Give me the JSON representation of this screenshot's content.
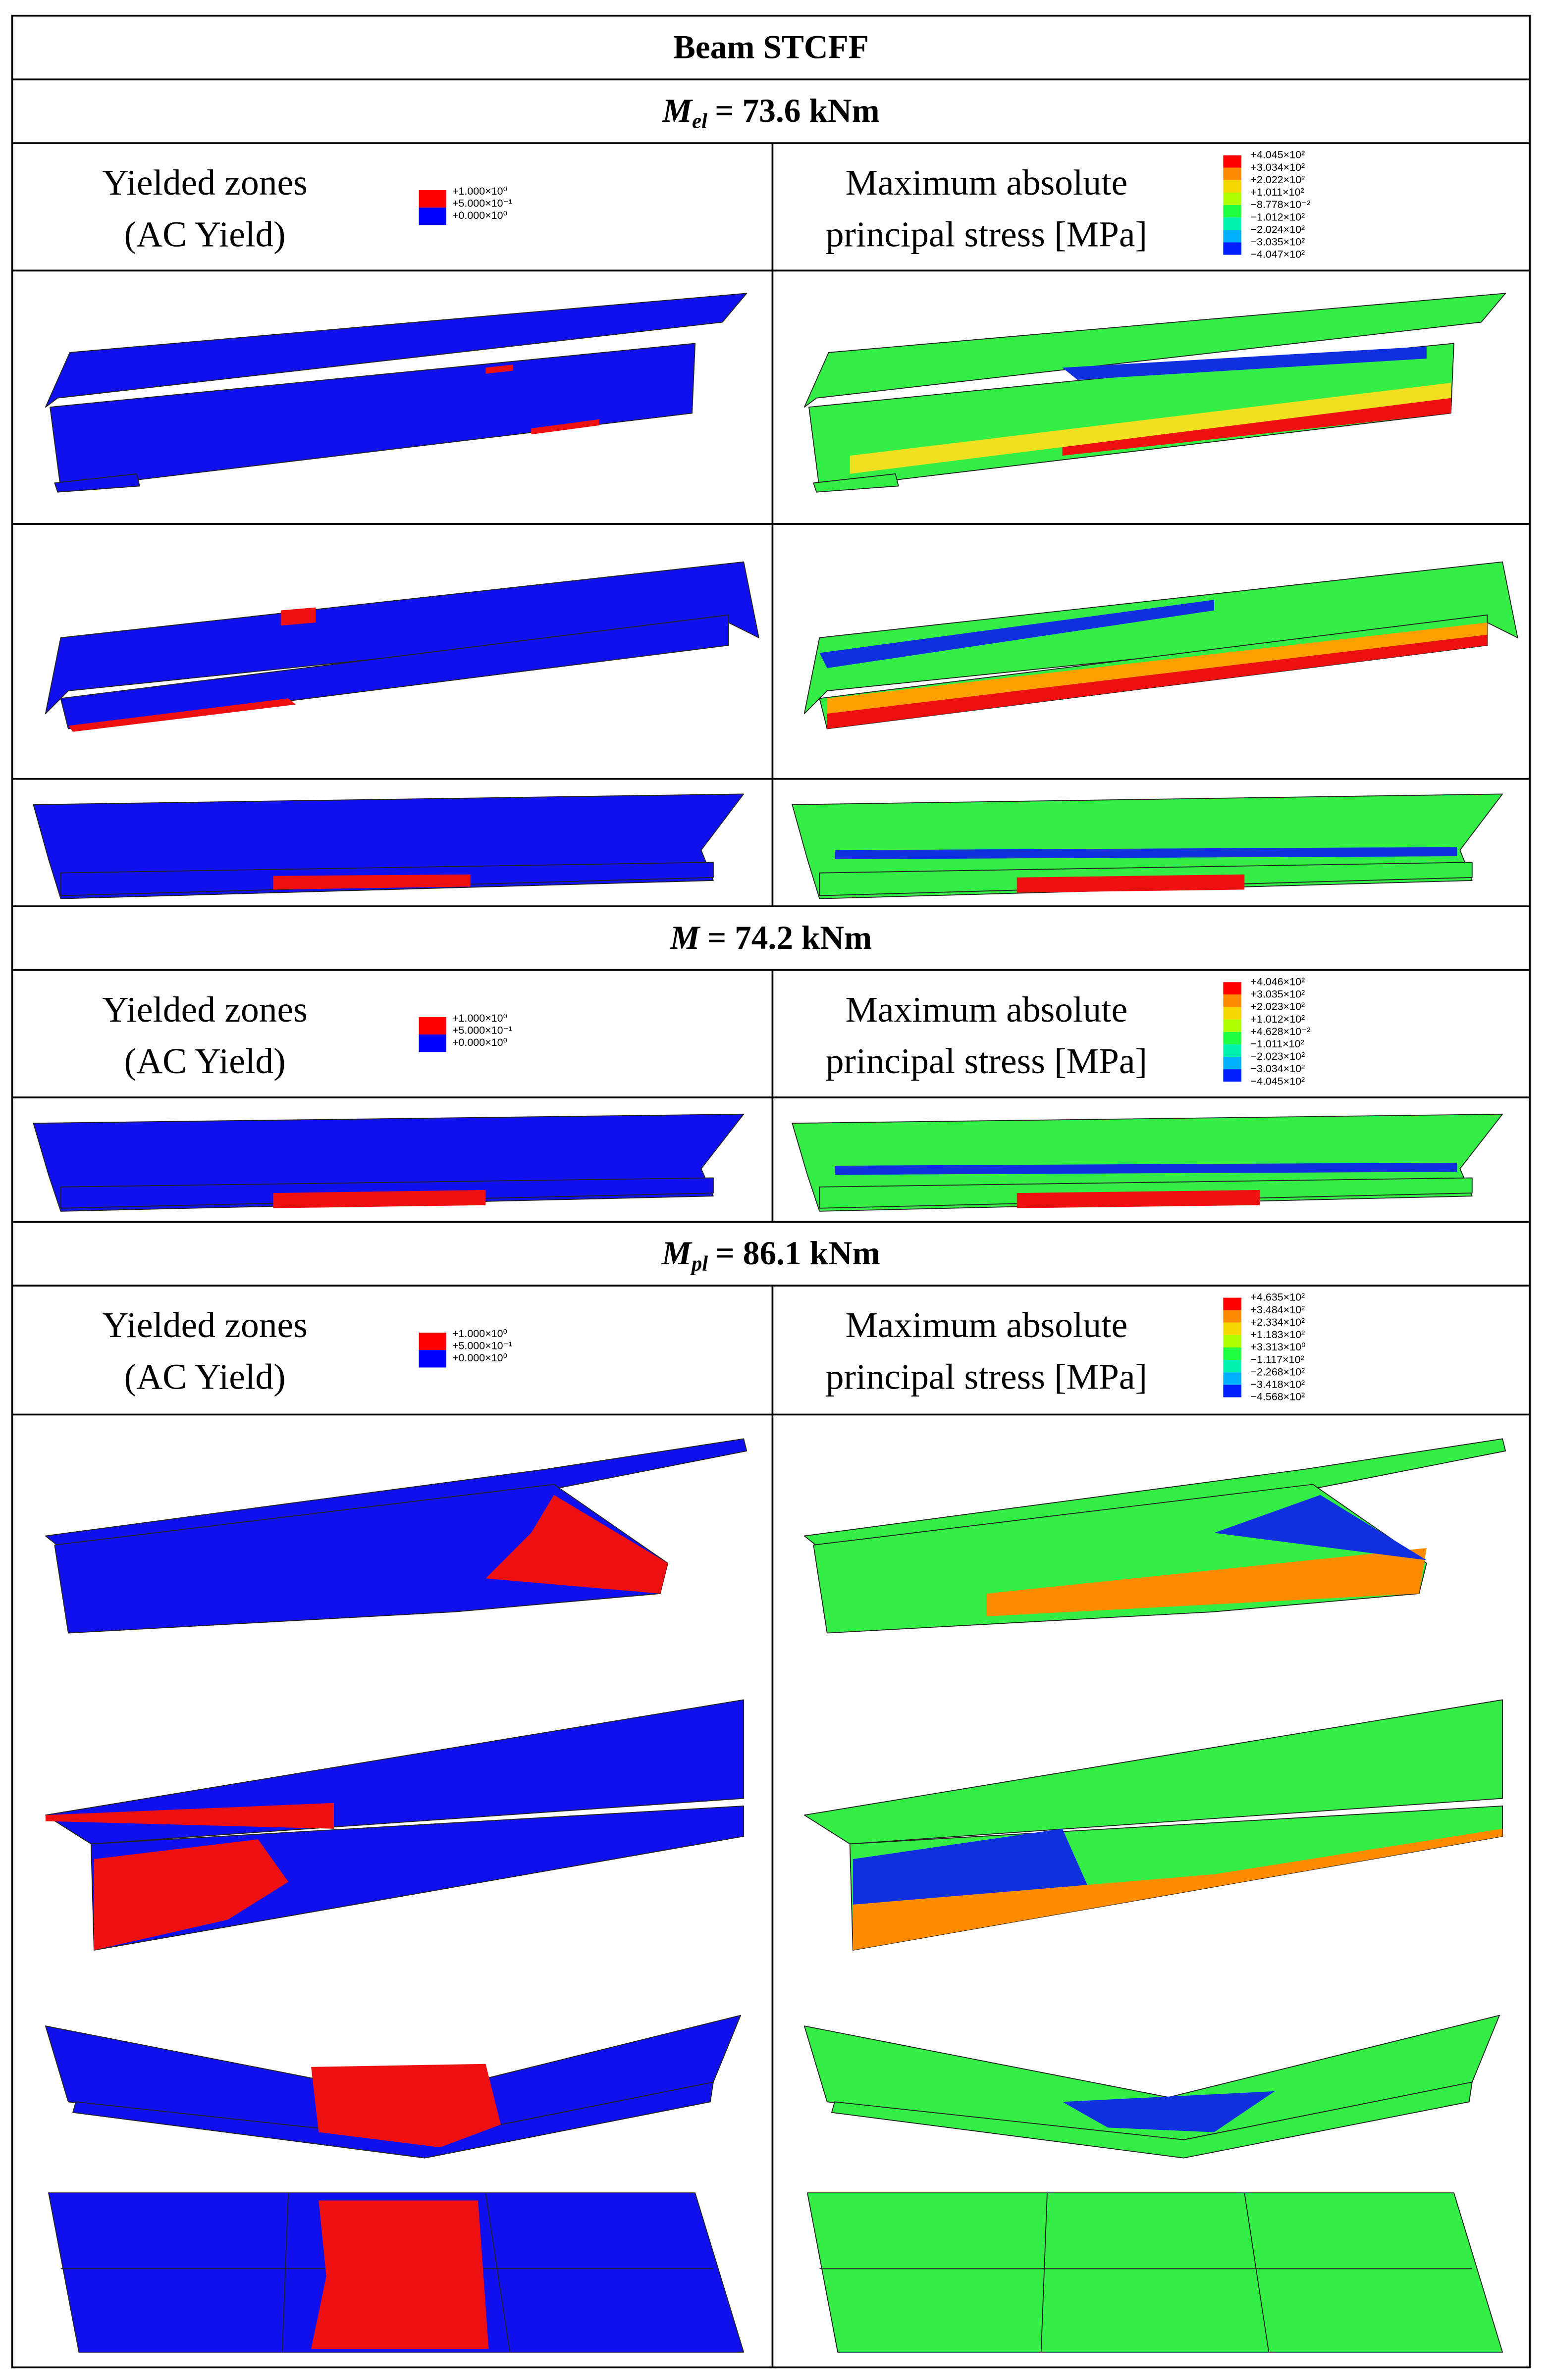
{
  "table": {
    "title": "Beam STCFF",
    "sections": [
      {
        "heading": {
          "symbol": "M",
          "subscript": "el",
          "value": "= 73.6 kNm"
        },
        "left_header": [
          "Yielded zones",
          "(AC Yield)"
        ],
        "left_legend": [
          "+1.000×10⁰",
          "+5.000×10⁻¹",
          "+0.000×10⁰"
        ],
        "right_header": [
          "Maximum absolute",
          "principal stress [MPa]"
        ],
        "right_legend": [
          "+4.045×10²",
          "+3.034×10²",
          "+2.022×10²",
          "+1.011×10²",
          "−8.778×10⁻²",
          "−1.012×10²",
          "−2.024×10²",
          "−3.035×10²",
          "−4.047×10²"
        ]
      },
      {
        "heading": {
          "symbol": "M",
          "value": "= 74.2 kNm"
        },
        "left_header": [
          "Yielded zones",
          "(AC Yield)"
        ],
        "left_legend": [
          "+1.000×10⁰",
          "+5.000×10⁻¹",
          "+0.000×10⁰"
        ],
        "right_header": [
          "Maximum absolute",
          "principal stress [MPa]"
        ],
        "right_legend": [
          "+4.046×10²",
          "+3.035×10²",
          "+2.023×10²",
          "+1.012×10²",
          "+4.628×10⁻²",
          "−1.011×10²",
          "−2.023×10²",
          "−3.034×10²",
          "−4.045×10²"
        ]
      },
      {
        "heading": {
          "symbol": "M",
          "subscript": "pl",
          "value": "= 86.1 kNm"
        },
        "left_header": [
          "Yielded zones",
          "(AC Yield)"
        ],
        "left_legend": [
          "+1.000×10⁰",
          "+5.000×10⁻¹",
          "+0.000×10⁰"
        ],
        "right_header": [
          "Maximum absolute",
          "principal stress [MPa]"
        ],
        "right_legend": [
          "+4.635×10²",
          "+3.484×10²",
          "+2.334×10²",
          "+1.183×10²",
          "+3.313×10⁰",
          "−1.117×10²",
          "−2.268×10²",
          "−3.418×10²",
          "−4.568×10²"
        ]
      }
    ]
  }
}
